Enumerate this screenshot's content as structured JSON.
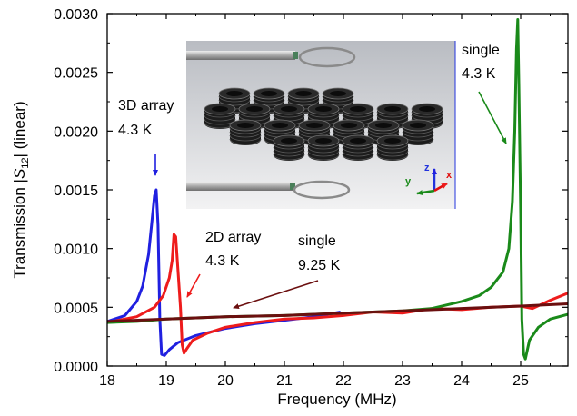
{
  "chart_data": {
    "type": "line",
    "xlabel": "Frequency (MHz)",
    "ylabel_prefix": "Transmission |",
    "ylabel_var": "S",
    "ylabel_sub": "12",
    "ylabel_suffix": "| (linear)",
    "xlim": [
      18,
      25.8
    ],
    "ylim": [
      0,
      0.003
    ],
    "x_ticks": [
      18,
      19,
      20,
      21,
      22,
      23,
      24,
      25
    ],
    "y_ticks": [
      0,
      0.0005,
      0.001,
      0.0015,
      0.002,
      0.0025,
      0.003
    ],
    "y_tick_labels": [
      "0.0000",
      "0.0005",
      "0.0010",
      "0.0015",
      "0.0020",
      "0.0025",
      "0.0030"
    ],
    "grid": false,
    "series": [
      {
        "color": "#2020e0",
        "points": [
          [
            18.0,
            0.00038
          ],
          [
            18.3,
            0.00043
          ],
          [
            18.5,
            0.00055
          ],
          [
            18.6,
            0.00068
          ],
          [
            18.7,
            0.00095
          ],
          [
            18.75,
            0.0012
          ],
          [
            18.8,
            0.00145
          ],
          [
            18.83,
            0.0015
          ],
          [
            18.86,
            0.0012
          ],
          [
            18.89,
            0.0004
          ],
          [
            18.92,
            0.0001
          ],
          [
            18.97,
            9e-05
          ],
          [
            19.05,
            0.00014
          ],
          [
            19.2,
            0.0002
          ],
          [
            19.5,
            0.00026
          ],
          [
            20.0,
            0.00032
          ],
          [
            20.5,
            0.00036
          ],
          [
            21.0,
            0.00039
          ],
          [
            21.5,
            0.00042
          ],
          [
            21.95,
            0.00046
          ]
        ]
      },
      {
        "color": "#ee1c1c",
        "points": [
          [
            18.0,
            0.00037
          ],
          [
            18.5,
            0.00042
          ],
          [
            18.8,
            0.0005
          ],
          [
            18.95,
            0.0006
          ],
          [
            19.05,
            0.00075
          ],
          [
            19.1,
            0.0009
          ],
          [
            19.13,
            0.00112
          ],
          [
            19.16,
            0.0011
          ],
          [
            19.18,
            0.00095
          ],
          [
            19.2,
            0.0008
          ],
          [
            19.24,
            0.0005
          ],
          [
            19.27,
            0.00018
          ],
          [
            19.3,
            0.00011
          ],
          [
            19.35,
            0.00015
          ],
          [
            19.45,
            0.00022
          ],
          [
            19.7,
            0.00028
          ],
          [
            20.0,
            0.00033
          ],
          [
            20.5,
            0.00037
          ],
          [
            21.0,
            0.0004
          ],
          [
            21.5,
            0.00041
          ],
          [
            22.0,
            0.00043
          ],
          [
            22.5,
            0.00046
          ],
          [
            23.0,
            0.00045
          ],
          [
            23.5,
            0.00049
          ],
          [
            24.0,
            0.00048
          ],
          [
            24.5,
            0.0005
          ],
          [
            25.0,
            0.00051
          ],
          [
            25.2,
            0.00049
          ],
          [
            25.5,
            0.00056
          ],
          [
            25.8,
            0.00062
          ]
        ]
      },
      {
        "color": "#1a8a1a",
        "points": [
          [
            18.0,
            0.00037
          ],
          [
            18.5,
            0.00038
          ],
          [
            19.0,
            0.0004
          ],
          [
            19.5,
            0.00041
          ],
          [
            20.0,
            0.00042
          ],
          [
            21.0,
            0.00043
          ],
          [
            22.0,
            0.00045
          ],
          [
            23.0,
            0.00047
          ],
          [
            23.5,
            0.00049
          ],
          [
            24.0,
            0.00055
          ],
          [
            24.3,
            0.0006
          ],
          [
            24.5,
            0.00067
          ],
          [
            24.7,
            0.0008
          ],
          [
            24.8,
            0.001
          ],
          [
            24.86,
            0.0014
          ],
          [
            24.9,
            0.002
          ],
          [
            24.93,
            0.0027
          ],
          [
            24.95,
            0.00295
          ],
          [
            24.97,
            0.0024
          ],
          [
            25.0,
            0.0013
          ],
          [
            25.02,
            0.0004
          ],
          [
            25.05,
            0.0001
          ],
          [
            25.08,
            6e-05
          ],
          [
            25.15,
            0.00022
          ],
          [
            25.3,
            0.00033
          ],
          [
            25.5,
            0.0004
          ],
          [
            25.8,
            0.00044
          ]
        ]
      },
      {
        "color": "#6b0f0f",
        "points": [
          [
            18.0,
            0.00038
          ],
          [
            19.0,
            0.0004
          ],
          [
            20.0,
            0.00042
          ],
          [
            21.0,
            0.00043
          ],
          [
            22.0,
            0.00045
          ],
          [
            23.0,
            0.00047
          ],
          [
            24.0,
            0.00049
          ],
          [
            25.0,
            0.00051
          ],
          [
            25.8,
            0.00053
          ]
        ]
      }
    ],
    "annotations": [
      {
        "lines": [
          "3D array",
          "4.3 K"
        ]
      },
      {
        "lines": [
          "2D array",
          "4.3 K"
        ]
      },
      {
        "lines": [
          "single",
          "9.25 K"
        ]
      },
      {
        "lines": [
          "single",
          "4.3 K"
        ]
      }
    ],
    "inset": {
      "type": "3D render of two loop probes above an array of coil resonators",
      "axis_letters": [
        "z",
        "y",
        "x"
      ],
      "axis_colors": [
        "#2233dd",
        "#1a8a1a",
        "#e01010"
      ]
    }
  }
}
